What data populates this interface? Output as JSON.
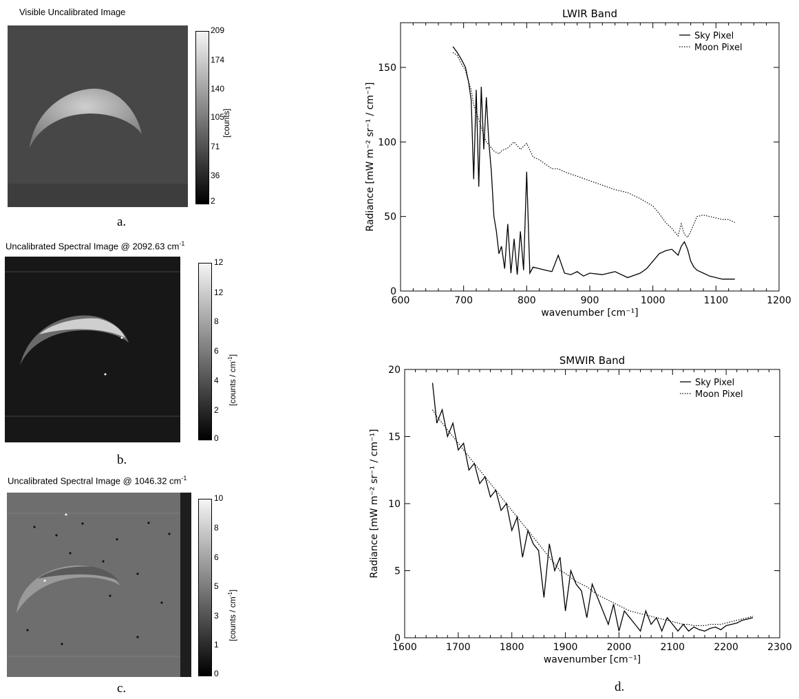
{
  "panels": {
    "a": {
      "title": "Visible Uncalibrated Image",
      "caption": "a.",
      "colorbar_ticks": [
        "209",
        "174",
        "140",
        "105",
        "71",
        "36",
        "2"
      ],
      "colorbar_unit": "[counts]"
    },
    "b": {
      "title": "Uncalibrated Spectral Image @ 2092.63 cm",
      "title_sup": "-1",
      "caption": "b.",
      "colorbar_ticks": [
        "12",
        "12",
        "8",
        "6",
        "4",
        "2",
        "0"
      ],
      "colorbar_unit": "[counts / cm",
      "colorbar_unit_sup": "-1",
      "colorbar_unit_end": "]"
    },
    "c": {
      "title": "Uncalibrated Spectral Image @ 1046.32 cm",
      "title_sup": "-1",
      "caption": "c.",
      "colorbar_ticks": [
        "10",
        "8",
        "6",
        "5",
        "3",
        "1",
        "0"
      ],
      "colorbar_unit": "[counts / cm",
      "colorbar_unit_sup": "-1",
      "colorbar_unit_end": "]"
    },
    "d": {
      "caption": "d."
    }
  },
  "chart_data": [
    {
      "type": "line",
      "title": "LWIR Band",
      "xlabel": "wavenumber [cm⁻¹]",
      "ylabel": "Radiance [mW m⁻² sr⁻¹ / cm⁻¹]",
      "xlim": [
        600,
        1200
      ],
      "ylim": [
        0,
        180
      ],
      "xticks": [
        600,
        700,
        800,
        900,
        1000,
        1100,
        1200
      ],
      "yticks": [
        0,
        50,
        100,
        150
      ],
      "legend_position": "top-right",
      "series": [
        {
          "name": "Sky Pixel",
          "style": "solid",
          "x": [
            683,
            690,
            697,
            703,
            708,
            712,
            716,
            720,
            724,
            728,
            732,
            736,
            740,
            744,
            748,
            752,
            756,
            760,
            765,
            770,
            775,
            780,
            785,
            790,
            795,
            800,
            805,
            810,
            820,
            830,
            840,
            850,
            860,
            870,
            880,
            890,
            900,
            920,
            940,
            960,
            980,
            990,
            1000,
            1010,
            1020,
            1030,
            1040,
            1045,
            1050,
            1055,
            1060,
            1065,
            1070,
            1080,
            1090,
            1100,
            1110,
            1120,
            1130
          ],
          "y": [
            164,
            160,
            155,
            150,
            140,
            128,
            75,
            135,
            70,
            137,
            95,
            130,
            100,
            80,
            50,
            40,
            25,
            30,
            15,
            45,
            12,
            35,
            11,
            40,
            14,
            80,
            12,
            16,
            15,
            14,
            13,
            24,
            12,
            11,
            13,
            10,
            12,
            11,
            13,
            9,
            12,
            15,
            20,
            25,
            27,
            28,
            24,
            30,
            33,
            28,
            20,
            16,
            14,
            12,
            10,
            9,
            8,
            8,
            8
          ]
        },
        {
          "name": "Moon Pixel",
          "style": "dotted",
          "x": [
            683,
            690,
            697,
            703,
            708,
            712,
            716,
            720,
            724,
            728,
            732,
            736,
            740,
            744,
            748,
            752,
            756,
            760,
            770,
            780,
            790,
            800,
            810,
            820,
            830,
            840,
            850,
            860,
            880,
            900,
            920,
            940,
            960,
            980,
            1000,
            1010,
            1020,
            1030,
            1040,
            1045,
            1050,
            1055,
            1060,
            1065,
            1070,
            1080,
            1090,
            1100,
            1110,
            1120,
            1130
          ],
          "y": [
            160,
            158,
            152,
            148,
            140,
            135,
            125,
            120,
            115,
            110,
            105,
            100,
            98,
            96,
            94,
            93,
            92,
            94,
            96,
            100,
            95,
            99,
            90,
            88,
            85,
            82,
            82,
            80,
            77,
            74,
            71,
            68,
            66,
            62,
            57,
            52,
            46,
            42,
            37,
            45,
            38,
            36,
            40,
            45,
            50,
            51,
            50,
            49,
            48,
            48,
            46
          ]
        }
      ]
    },
    {
      "type": "line",
      "title": "SMWIR Band",
      "xlabel": "wavenumber [cm⁻¹]",
      "ylabel": "Radiance [mW m⁻² sr⁻¹ / cm⁻¹]",
      "xlim": [
        1600,
        2300
      ],
      "ylim": [
        0,
        20
      ],
      "xticks": [
        1600,
        1700,
        1800,
        1900,
        2000,
        2100,
        2200,
        2300
      ],
      "yticks": [
        0,
        5,
        10,
        15,
        20
      ],
      "legend_position": "top-right",
      "series": [
        {
          "name": "Sky Pixel",
          "style": "solid",
          "x": [
            1652,
            1660,
            1670,
            1680,
            1690,
            1700,
            1710,
            1720,
            1730,
            1740,
            1750,
            1760,
            1770,
            1780,
            1790,
            1800,
            1810,
            1820,
            1830,
            1840,
            1850,
            1860,
            1870,
            1880,
            1890,
            1900,
            1910,
            1920,
            1930,
            1940,
            1950,
            1960,
            1970,
            1980,
            1990,
            2000,
            2010,
            2020,
            2030,
            2040,
            2050,
            2060,
            2070,
            2080,
            2090,
            2100,
            2110,
            2120,
            2130,
            2140,
            2150,
            2160,
            2170,
            2180,
            2190,
            2200,
            2210,
            2220,
            2230,
            2240,
            2250
          ],
          "y": [
            19,
            16,
            17,
            15,
            16,
            14,
            14.5,
            12.5,
            13,
            11.5,
            12,
            10.5,
            11,
            9.5,
            10,
            8,
            9,
            6,
            8,
            7,
            6.5,
            3,
            7,
            5,
            6,
            2,
            5,
            4,
            3.5,
            1.5,
            4,
            3,
            2,
            1,
            2.5,
            0.5,
            2,
            1.5,
            1,
            0.5,
            2,
            1,
            1.5,
            0.5,
            1.5,
            1,
            0.5,
            1,
            0.5,
            0.8,
            0.6,
            0.5,
            0.7,
            0.8,
            0.6,
            0.9,
            1.0,
            1.1,
            1.3,
            1.4,
            1.5
          ]
        },
        {
          "name": "Moon Pixel",
          "style": "dotted",
          "x": [
            1652,
            1660,
            1670,
            1680,
            1690,
            1700,
            1710,
            1720,
            1730,
            1740,
            1750,
            1760,
            1770,
            1780,
            1790,
            1800,
            1810,
            1820,
            1830,
            1840,
            1850,
            1860,
            1870,
            1880,
            1890,
            1900,
            1910,
            1920,
            1930,
            1940,
            1950,
            1960,
            1970,
            1980,
            1990,
            2000,
            2010,
            2020,
            2030,
            2040,
            2050,
            2060,
            2070,
            2080,
            2090,
            2100,
            2110,
            2120,
            2130,
            2140,
            2150,
            2160,
            2170,
            2180,
            2190,
            2200,
            2210,
            2220,
            2230,
            2240,
            2250
          ],
          "y": [
            17,
            16.5,
            16,
            15.5,
            15,
            14.5,
            14,
            13.5,
            13,
            12.5,
            12,
            11.5,
            11,
            10.5,
            10,
            9.5,
            9,
            8.5,
            8,
            7.5,
            7,
            6.5,
            6,
            5.5,
            5,
            4.8,
            4.5,
            4.2,
            4,
            3.8,
            3.5,
            3.2,
            3,
            2.8,
            2.6,
            2.4,
            2.2,
            2,
            1.9,
            1.8,
            1.7,
            1.6,
            1.5,
            1.4,
            1.3,
            1.2,
            1.1,
            1.0,
            1.0,
            0.9,
            0.9,
            0.9,
            1.0,
            1.0,
            1.0,
            1.1,
            1.2,
            1.3,
            1.4,
            1.5,
            1.6
          ]
        }
      ]
    }
  ]
}
